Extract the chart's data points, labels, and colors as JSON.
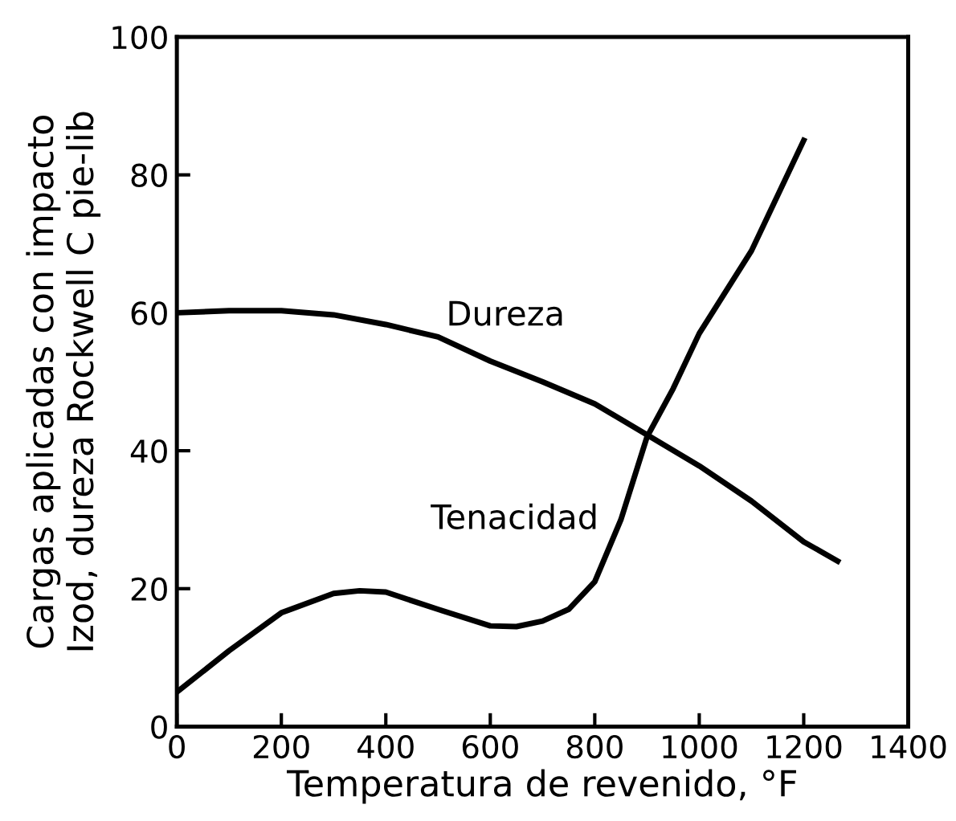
{
  "chart_data": {
    "type": "line",
    "xlabel": "Temperatura de revenido, °F",
    "ylabel": "Cargas aplicadas con impacto\nIzod, dureza Rockwell C pie-lib",
    "xlim": [
      0,
      1400
    ],
    "xticks": [
      0,
      200,
      400,
      600,
      800,
      1000,
      1200,
      1400
    ],
    "ylim": [
      0,
      100
    ],
    "yticks": [
      0,
      20,
      40,
      60,
      80,
      100
    ],
    "grid": false,
    "legend": false,
    "marker": "none",
    "line_style": "solid",
    "series": [
      {
        "name": "Dureza",
        "color": "#000000",
        "x": [
          0,
          100,
          200,
          300,
          400,
          500,
          600,
          700,
          800,
          900,
          1000,
          1100,
          1200,
          1265
        ],
        "values": [
          60,
          60.3,
          60.3,
          59.7,
          58.3,
          56.5,
          53,
          50,
          46.8,
          42.3,
          37.8,
          32.7,
          26.8,
          24
        ]
      },
      {
        "name": "Tenacidad",
        "color": "#000000",
        "x": [
          0,
          100,
          200,
          300,
          350,
          400,
          500,
          600,
          650,
          700,
          750,
          800,
          850,
          900,
          950,
          1000,
          1100,
          1200
        ],
        "values": [
          5,
          11,
          16.5,
          19.3,
          19.7,
          19.5,
          17,
          14.6,
          14.5,
          15.3,
          17,
          21,
          30,
          42,
          49,
          57,
          69,
          85
        ]
      }
    ]
  }
}
